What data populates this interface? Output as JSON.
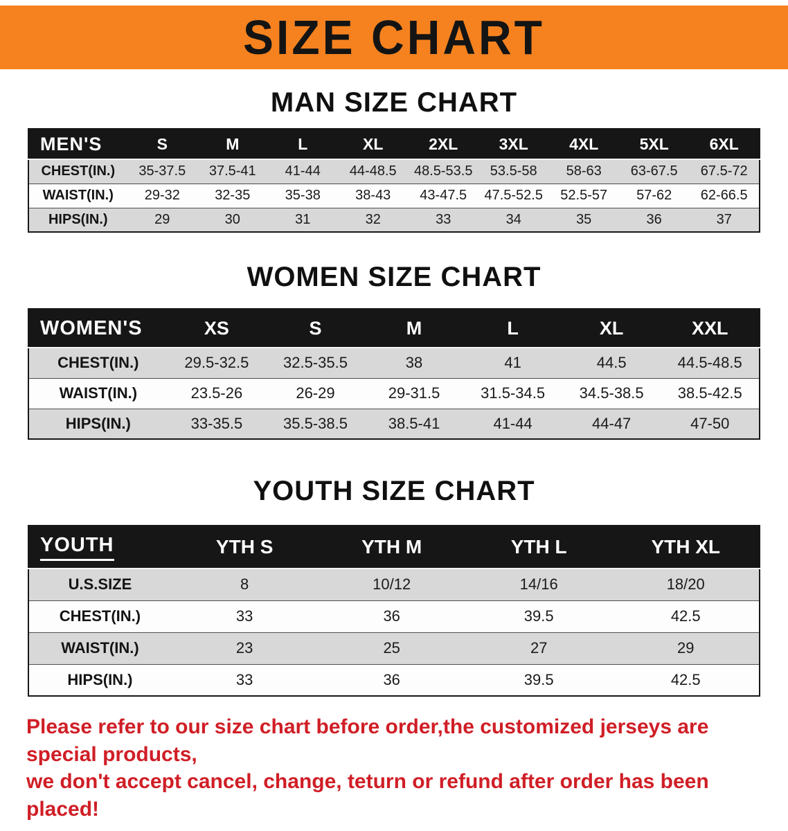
{
  "banner": {
    "title": "SIZE CHART"
  },
  "chart_data": [
    {
      "type": "table",
      "title": "MAN SIZE CHART",
      "columns": [
        "MEN'S",
        "S",
        "M",
        "L",
        "XL",
        "2XL",
        "3XL",
        "4XL",
        "5XL",
        "6XL"
      ],
      "rows": [
        [
          "CHEST(IN.)",
          "35-37.5",
          "37.5-41",
          "41-44",
          "44-48.5",
          "48.5-53.5",
          "53.5-58",
          "58-63",
          "63-67.5",
          "67.5-72"
        ],
        [
          "WAIST(IN.)",
          "29-32",
          "32-35",
          "35-38",
          "38-43",
          "43-47.5",
          "47.5-52.5",
          "52.5-57",
          "57-62",
          "62-66.5"
        ],
        [
          "HIPS(IN.)",
          "29",
          "30",
          "31",
          "32",
          "33",
          "34",
          "35",
          "36",
          "37"
        ]
      ]
    },
    {
      "type": "table",
      "title": "WOMEN SIZE CHART",
      "columns": [
        "WOMEN'S",
        "XS",
        "S",
        "M",
        "L",
        "XL",
        "XXL"
      ],
      "rows": [
        [
          "CHEST(IN.)",
          "29.5-32.5",
          "32.5-35.5",
          "38",
          "41",
          "44.5",
          "44.5-48.5"
        ],
        [
          "WAIST(IN.)",
          "23.5-26",
          "26-29",
          "29-31.5",
          "31.5-34.5",
          "34.5-38.5",
          "38.5-42.5"
        ],
        [
          "HIPS(IN.)",
          "33-35.5",
          "35.5-38.5",
          "38.5-41",
          "41-44",
          "44-47",
          "47-50"
        ]
      ]
    },
    {
      "type": "table",
      "title": "YOUTH SIZE CHART",
      "columns": [
        "YOUTH",
        "YTH S",
        "YTH M",
        "YTH L",
        "YTH XL"
      ],
      "rows": [
        [
          "U.S.SIZE",
          "8",
          "10/12",
          "14/16",
          "18/20"
        ],
        [
          "CHEST(IN.)",
          "33",
          "36",
          "39.5",
          "42.5"
        ],
        [
          "WAIST(IN.)",
          "23",
          "25",
          "27",
          "29"
        ],
        [
          "HIPS(IN.)",
          "33",
          "36",
          "39.5",
          "42.5"
        ]
      ]
    }
  ],
  "disclaimer": {
    "line1": "Please refer to our size chart before order,the customized jerseys are special products,",
    "line2": "we don't accept cancel, change, teturn or refund after order has been placed!"
  },
  "colors": {
    "banner_bg": "#f5821f",
    "banner_text": "#141414",
    "header_bg": "#161616",
    "header_text": "#ffffff",
    "row_stripe": "#d8d8d8",
    "row_alt": "#fdfdfd",
    "table_border": "#171717",
    "disclaimer_text": "#d01e26"
  }
}
